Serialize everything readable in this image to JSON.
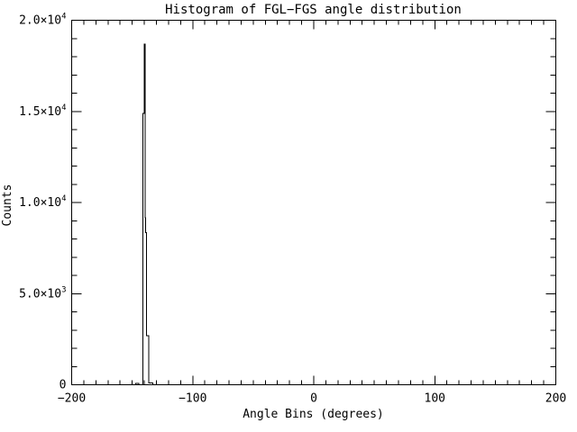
{
  "window": {
    "background": "#ffffff",
    "foreground": "#000000"
  },
  "chart_data": {
    "type": "bar",
    "style": "step-histogram",
    "title": "Histogram of FGL−FGS angle distribution",
    "xlabel": "Angle Bins (degrees)",
    "ylabel": "Counts",
    "xlim": [
      -200,
      200
    ],
    "ylim": [
      0,
      20000
    ],
    "grid": false,
    "legend": "none",
    "x_major_ticks": [
      -200,
      -100,
      0,
      100,
      200
    ],
    "x_tick_labels": [
      "−200",
      "−100",
      "0",
      "100",
      "200"
    ],
    "x_minor_step": 10,
    "y_major_ticks": [
      0,
      5000,
      10000,
      15000,
      20000
    ],
    "y_tick_labels": [
      "0",
      "5.0×10^3",
      "1.0×10^4",
      "1.5×10^4",
      "2.0×10^4"
    ],
    "y_minor_step": 1000,
    "line_color": "#000000",
    "background_color": "#ffffff",
    "peak_bin": {
      "angle": -140,
      "counts": 18700
    },
    "steps": [
      [
        -200,
        0
      ],
      [
        -147,
        0
      ],
      [
        -147,
        80
      ],
      [
        -144.5,
        80
      ],
      [
        -144.5,
        0
      ],
      [
        -141.2,
        0
      ],
      [
        -141.2,
        14900
      ],
      [
        -140.1,
        14900
      ],
      [
        -140.1,
        18700
      ],
      [
        -139.4,
        18700
      ],
      [
        -139.4,
        9150
      ],
      [
        -138.8,
        9150
      ],
      [
        -138.8,
        8350
      ],
      [
        -138.2,
        8350
      ],
      [
        -138.2,
        2700
      ],
      [
        -136.3,
        2700
      ],
      [
        -136.3,
        100
      ],
      [
        -133,
        100
      ],
      [
        -133,
        0
      ],
      [
        200,
        0
      ]
    ]
  }
}
